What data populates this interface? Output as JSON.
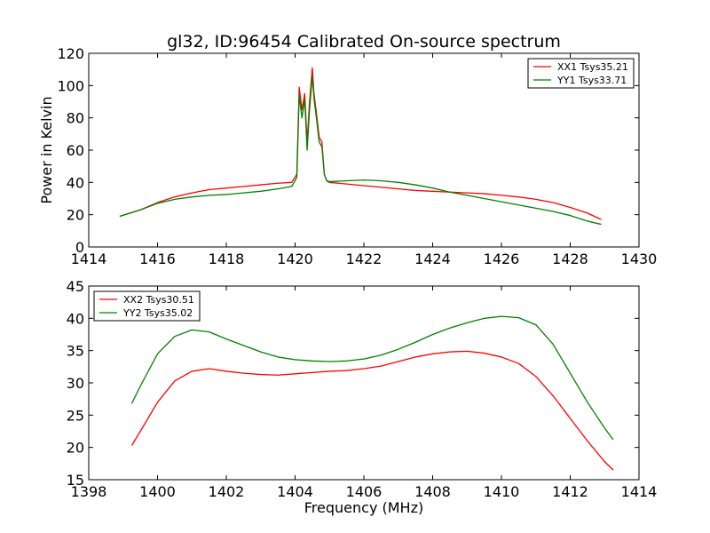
{
  "figure": {
    "title": "gl32, ID:96454 Calibrated On-source spectrum",
    "xlabel": "Frequency (MHz)"
  },
  "chart_data": [
    {
      "type": "line",
      "title": "gl32, ID:96454 Calibrated On-source spectrum",
      "xlabel": "",
      "ylabel": "Power in Kelvin",
      "xlim": [
        1414,
        1430
      ],
      "ylim": [
        0,
        120
      ],
      "xticks": [
        1414,
        1416,
        1418,
        1420,
        1422,
        1424,
        1426,
        1428,
        1430
      ],
      "yticks": [
        0,
        20,
        40,
        60,
        80,
        100,
        120
      ],
      "grid": false,
      "legend_position": "top-right",
      "series": [
        {
          "name": "XX1 Tsys35.21",
          "color": "#ff0000",
          "x": [
            1414.9,
            1415.5,
            1416.0,
            1416.5,
            1417.0,
            1417.5,
            1418.0,
            1418.5,
            1419.0,
            1419.5,
            1419.9,
            1420.05,
            1420.12,
            1420.2,
            1420.28,
            1420.35,
            1420.42,
            1420.5,
            1420.55,
            1420.62,
            1420.7,
            1420.78,
            1420.85,
            1420.92,
            1421.0,
            1421.5,
            1422.0,
            1422.5,
            1423.0,
            1423.5,
            1424.0,
            1424.5,
            1425.0,
            1425.5,
            1426.0,
            1426.5,
            1427.0,
            1427.5,
            1428.0,
            1428.5,
            1428.9
          ],
          "y": [
            19,
            23,
            27.5,
            31,
            33.5,
            35.5,
            36.5,
            37.5,
            38.5,
            39.5,
            40,
            45,
            99,
            85,
            95,
            65,
            90,
            111,
            95,
            83,
            68,
            65,
            45,
            41,
            40,
            39,
            38,
            37,
            36,
            35,
            34.5,
            34,
            33.5,
            33,
            32,
            31,
            29.5,
            27.5,
            24.5,
            21,
            17
          ]
        },
        {
          "name": "YY1 Tsys33.71",
          "color": "#008000",
          "x": [
            1414.9,
            1415.5,
            1416.0,
            1416.5,
            1417.0,
            1417.5,
            1418.0,
            1418.5,
            1419.0,
            1419.5,
            1419.9,
            1420.05,
            1420.12,
            1420.2,
            1420.28,
            1420.35,
            1420.42,
            1420.5,
            1420.55,
            1420.62,
            1420.7,
            1420.78,
            1420.85,
            1420.92,
            1421.0,
            1421.5,
            1422.0,
            1422.5,
            1423.0,
            1423.5,
            1424.0,
            1424.5,
            1425.0,
            1425.5,
            1426.0,
            1426.5,
            1427.0,
            1427.5,
            1428.0,
            1428.5,
            1428.9
          ],
          "y": [
            19,
            23,
            27,
            29.5,
            31,
            32,
            32.5,
            33.5,
            34.5,
            36,
            37.5,
            43,
            94,
            80,
            92,
            60,
            85,
            106,
            92,
            80,
            65,
            62,
            45,
            41,
            40.5,
            41,
            41.5,
            41,
            40,
            38.5,
            36.5,
            34,
            32,
            30,
            28,
            26,
            24,
            22,
            19.5,
            16,
            14
          ]
        }
      ]
    },
    {
      "type": "line",
      "title": "",
      "xlabel": "Frequency (MHz)",
      "ylabel": "",
      "xlim": [
        1398,
        1414
      ],
      "ylim": [
        15,
        45
      ],
      "xticks": [
        1398,
        1400,
        1402,
        1404,
        1406,
        1408,
        1410,
        1412,
        1414
      ],
      "yticks": [
        15,
        20,
        25,
        30,
        35,
        40,
        45
      ],
      "grid": false,
      "legend_position": "top-left",
      "series": [
        {
          "name": "XX2 Tsys30.51",
          "color": "#ff0000",
          "x": [
            1399.25,
            1399.5,
            1400.0,
            1400.5,
            1401.0,
            1401.5,
            1402.0,
            1402.5,
            1403.0,
            1403.5,
            1404.0,
            1404.5,
            1405.0,
            1405.5,
            1406.0,
            1406.5,
            1407.0,
            1407.5,
            1408.0,
            1408.5,
            1409.0,
            1409.5,
            1410.0,
            1410.5,
            1411.0,
            1411.5,
            1412.0,
            1412.5,
            1413.0,
            1413.25
          ],
          "y": [
            20.3,
            22.5,
            27,
            30.3,
            31.8,
            32.2,
            31.8,
            31.5,
            31.3,
            31.2,
            31.4,
            31.6,
            31.8,
            31.9,
            32.2,
            32.6,
            33.3,
            34.0,
            34.5,
            34.8,
            34.9,
            34.6,
            34.0,
            33.0,
            31.0,
            28.0,
            24.5,
            21.0,
            17.8,
            16.5
          ]
        },
        {
          "name": "YY2 Tsys35.02",
          "color": "#008000",
          "x": [
            1399.25,
            1399.5,
            1400.0,
            1400.5,
            1401.0,
            1401.5,
            1402.0,
            1402.5,
            1403.0,
            1403.5,
            1404.0,
            1404.5,
            1405.0,
            1405.5,
            1406.0,
            1406.5,
            1407.0,
            1407.5,
            1408.0,
            1408.5,
            1409.0,
            1409.5,
            1410.0,
            1410.5,
            1411.0,
            1411.5,
            1412.0,
            1412.5,
            1413.0,
            1413.25
          ],
          "y": [
            26.8,
            29.5,
            34.5,
            37.2,
            38.2,
            37.9,
            36.8,
            35.8,
            34.8,
            34.0,
            33.6,
            33.4,
            33.3,
            33.4,
            33.7,
            34.3,
            35.2,
            36.3,
            37.5,
            38.5,
            39.3,
            40.0,
            40.3,
            40.1,
            39.0,
            36.0,
            31.5,
            27.0,
            23.0,
            21.2
          ]
        }
      ]
    }
  ]
}
